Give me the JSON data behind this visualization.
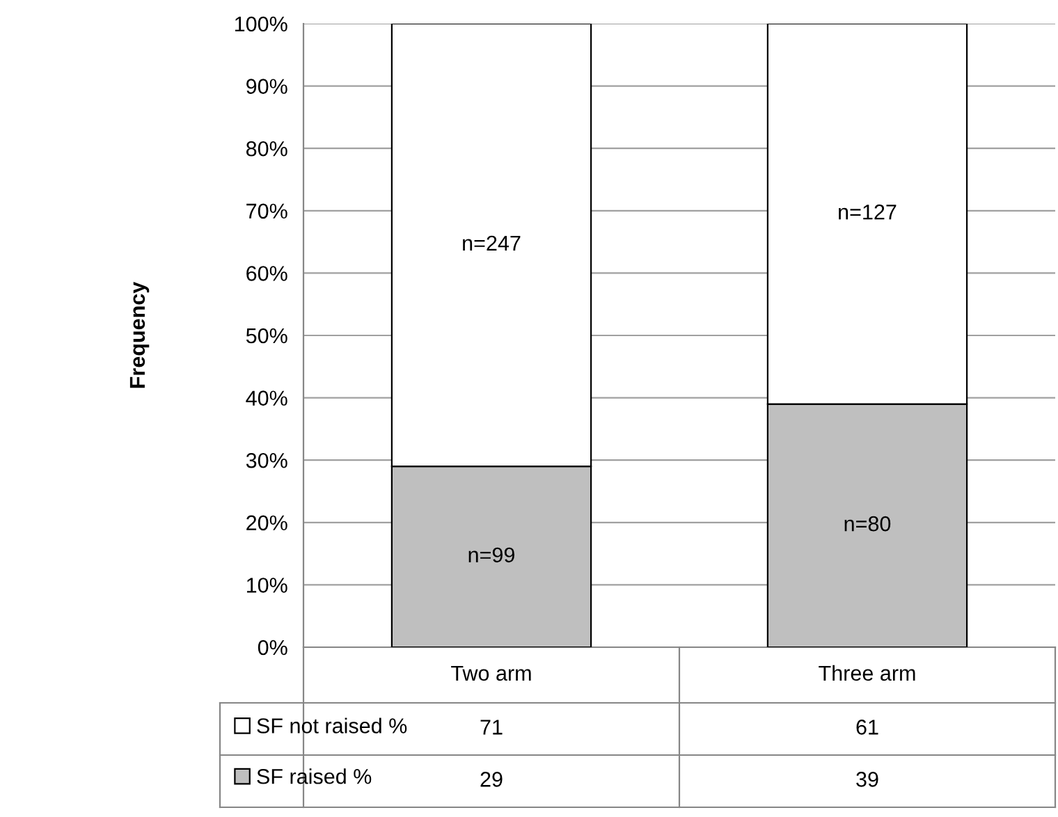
{
  "chart_data": {
    "type": "bar",
    "stacked": true,
    "ylabel": "Frequency",
    "categories": [
      "Two arm",
      "Three arm"
    ],
    "series": [
      {
        "name": "SF raised %",
        "color": "#bfbfbf",
        "values": [
          29,
          39
        ]
      },
      {
        "name": "SF not raised %",
        "color": "#ffffff",
        "values": [
          71,
          61
        ]
      }
    ],
    "annotations": [
      "n=99",
      "n=80",
      "n=247",
      "n=127"
    ],
    "legend": "bottom left",
    "ylim": [
      0,
      100
    ],
    "yticks": [
      {
        "value": 0,
        "label": "0%"
      },
      {
        "value": 10,
        "label": "10%"
      },
      {
        "value": 20,
        "label": "20%"
      },
      {
        "value": 30,
        "label": "30%"
      },
      {
        "value": 40,
        "label": "40%"
      },
      {
        "value": 50,
        "label": "50%"
      },
      {
        "value": 60,
        "label": "60%"
      },
      {
        "value": 70,
        "label": "70%"
      },
      {
        "value": 80,
        "label": "80%"
      },
      {
        "value": 90,
        "label": "90%"
      },
      {
        "value": 100,
        "label": "100%"
      }
    ],
    "grid": "y",
    "data_labels": true
  }
}
